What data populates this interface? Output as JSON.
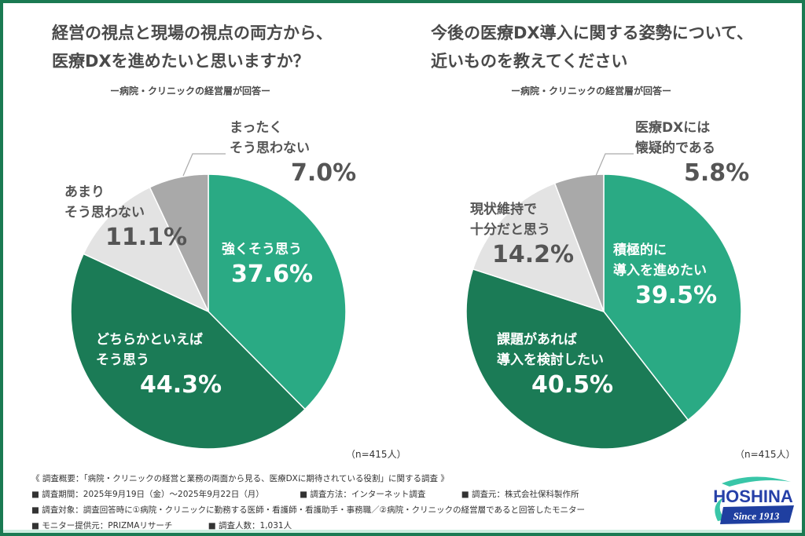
{
  "chart_data": [
    {
      "type": "pie",
      "title": "経営の視点と現場の視点の両方から、医療DXを進めたいと思いますか？",
      "title_lines": [
        "経営の視点と現場の視点の両方から、",
        "医療DXを進めたいと思いますか？"
      ],
      "subtitle": "ー病院・クリニックの経営層が回答ー",
      "sample": "（n=415人）",
      "slices": [
        {
          "label": "強くそう思う",
          "lines": [
            "強くそう思う"
          ],
          "value": 37.6,
          "display": "37.6%",
          "color": "#2aaa84"
        },
        {
          "label": "どちらかといえばそう思う",
          "lines": [
            "どちらかといえば",
            "そう思う"
          ],
          "value": 44.3,
          "display": "44.3%",
          "color": "#1b7b56"
        },
        {
          "label": "あまりそう思わない",
          "lines": [
            "あまり",
            "そう思わない"
          ],
          "value": 11.1,
          "display": "11.1%",
          "color": "#e3e3e3"
        },
        {
          "label": "まったくそう思わない",
          "lines": [
            "まったく",
            "そう思わない"
          ],
          "value": 7.0,
          "display": "7.0%",
          "color": "#a9a9a9"
        }
      ]
    },
    {
      "type": "pie",
      "title": "今後の医療DX導入に関する姿勢について、近いものを教えてください",
      "title_lines": [
        "今後の医療DX導入に関する姿勢について、",
        "近いものを教えてください"
      ],
      "subtitle": "ー病院・クリニックの経営層が回答ー",
      "sample": "（n=415人）",
      "slices": [
        {
          "label": "積極的に導入を進めたい",
          "lines": [
            "積極的に",
            "導入を進めたい"
          ],
          "value": 39.5,
          "display": "39.5%",
          "color": "#2aaa84"
        },
        {
          "label": "課題があれば導入を検討したい",
          "lines": [
            "課題があれば",
            "導入を検討したい"
          ],
          "value": 40.5,
          "display": "40.5%",
          "color": "#1b7b56"
        },
        {
          "label": "現状維持で十分だと思う",
          "lines": [
            "現状維持で",
            "十分だと思う"
          ],
          "value": 14.2,
          "display": "14.2%",
          "color": "#e3e3e3"
        },
        {
          "label": "医療DXには懐疑的である",
          "lines": [
            "医療DXには",
            "懐疑的である"
          ],
          "value": 5.8,
          "display": "5.8%",
          "color": "#a9a9a9"
        }
      ]
    }
  ],
  "footer": {
    "overview": "《 調査概要：「病院・クリニックの経営と業務の両面から見る、医療DXに期待されている役割」に関する調査 》",
    "period": "■ 調査期間：2025年9月19日（金）～2025年9月22日（月）",
    "method": "■ 調査方法：インターネット調査",
    "source": "■ 調査元：株式会社保科製作所",
    "target": "■ 調査対象：調査回答時に①病院・クリニックに勤務する医師・看護師・看護助手・事務職／②病院・クリニックの経営層であると回答したモニター",
    "provider": "■ モニター提供元：PRIZMAリサーチ",
    "count": "■ 調査人数：1,031人"
  },
  "logo": {
    "name": "HOSHINA",
    "since": "Since 1913"
  }
}
